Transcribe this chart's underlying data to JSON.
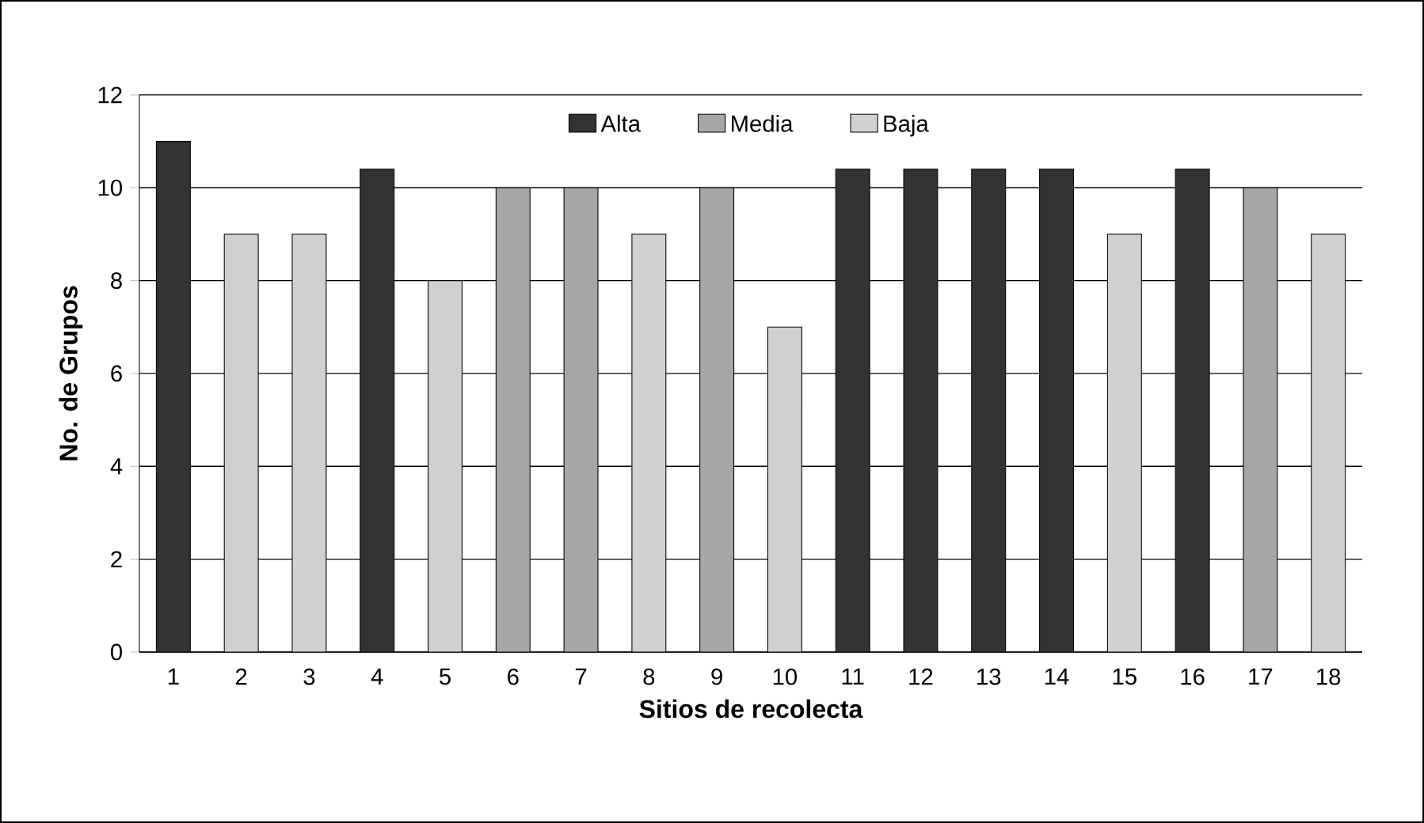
{
  "chart_data": {
    "type": "bar",
    "xlabel": "Sitios de recolecta",
    "ylabel": "No. de Grupos",
    "categories": [
      "1",
      "2",
      "3",
      "4",
      "5",
      "6",
      "7",
      "8",
      "9",
      "10",
      "11",
      "12",
      "13",
      "14",
      "15",
      "16",
      "17",
      "18"
    ],
    "series": [
      {
        "name": "Alta",
        "color": "#333333",
        "values": [
          11,
          null,
          null,
          10.4,
          null,
          null,
          null,
          null,
          null,
          null,
          10.4,
          10.4,
          10.4,
          10.4,
          null,
          10.4,
          null,
          null
        ]
      },
      {
        "name": "Media",
        "color": "#a6a6a6",
        "values": [
          null,
          null,
          null,
          null,
          null,
          10,
          10,
          null,
          10,
          null,
          null,
          null,
          null,
          null,
          null,
          null,
          10,
          null
        ]
      },
      {
        "name": "Baja",
        "color": "#d0d0d0",
        "values": [
          null,
          9,
          9,
          null,
          8,
          null,
          null,
          9,
          null,
          7,
          null,
          null,
          null,
          null,
          9,
          null,
          null,
          9
        ]
      }
    ],
    "ylim": [
      0,
      12
    ],
    "yticks": [
      0,
      2,
      4,
      6,
      8,
      10,
      12
    ],
    "grid": "y",
    "legend": "top"
  }
}
